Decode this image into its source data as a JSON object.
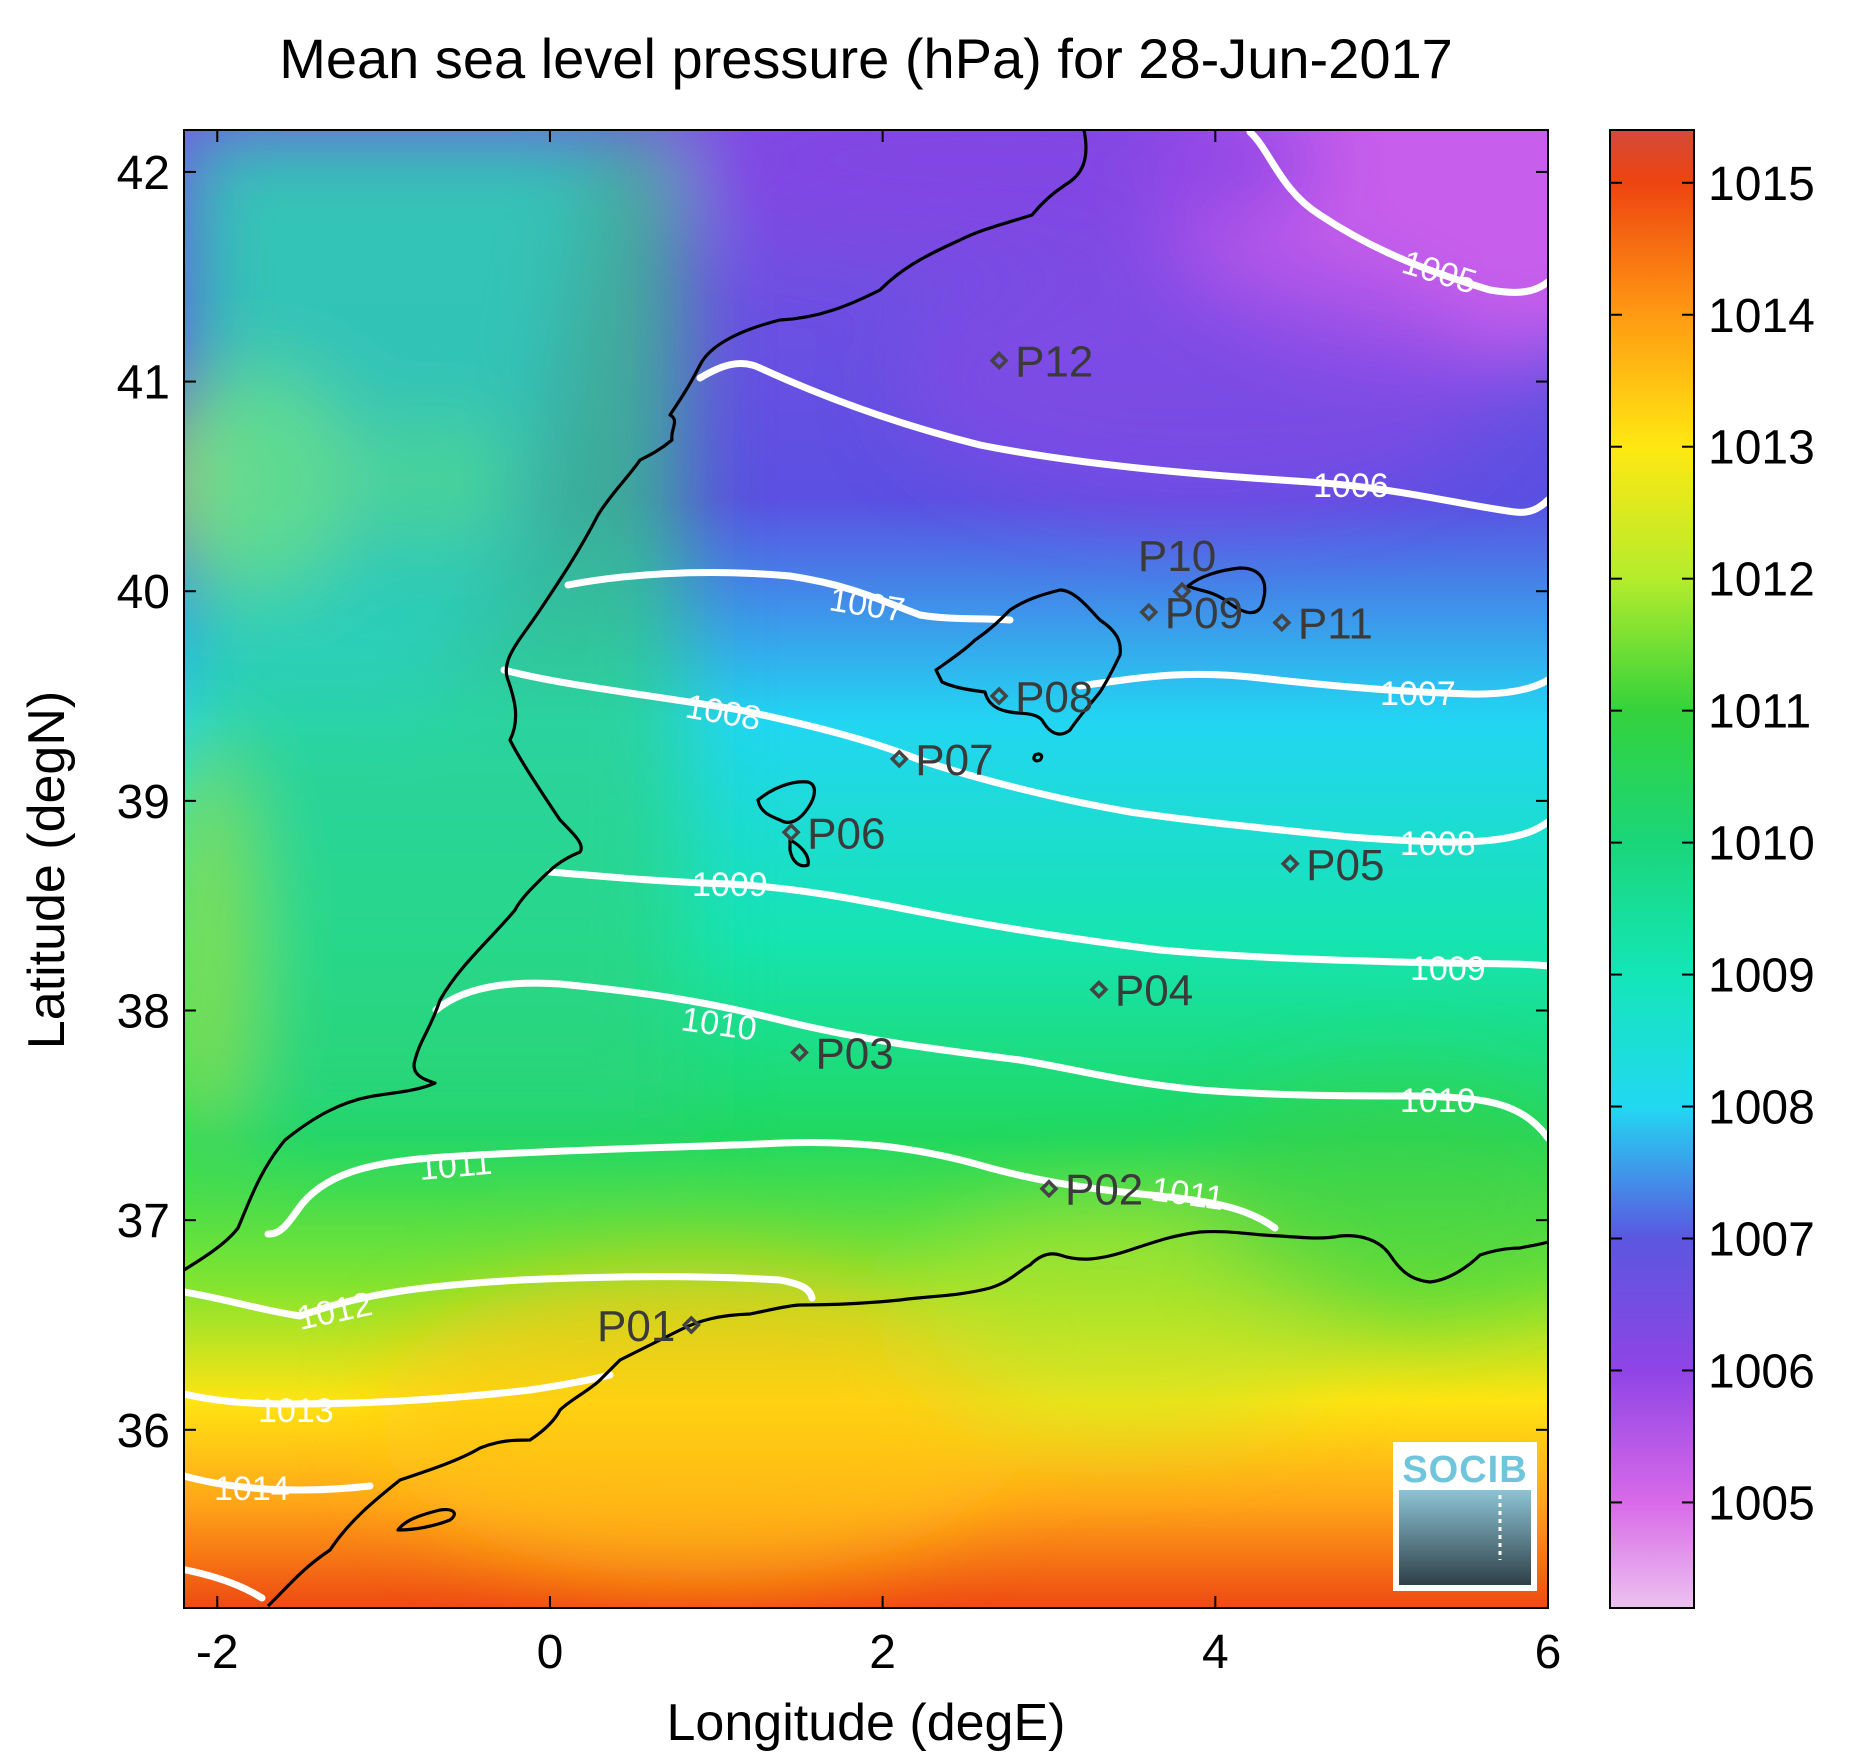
{
  "title": "Mean sea level pressure (hPa) for 28-Jun-2017",
  "xlabel": "Longitude (degE)",
  "ylabel": "Latitude (degN)",
  "x_ticks": [
    "-2",
    "0",
    "2",
    "4",
    "6"
  ],
  "y_ticks": [
    "42",
    "41",
    "40",
    "39",
    "38",
    "37",
    "36"
  ],
  "colorbar_ticks": [
    "1015",
    "1014",
    "1013",
    "1012",
    "1011",
    "1010",
    "1009",
    "1008",
    "1007",
    "1006",
    "1005"
  ],
  "colorbar_stops": [
    {
      "value": 1004.2,
      "color": "#ecc2f0"
    },
    {
      "value": 1005,
      "color": "#d86ae8"
    },
    {
      "value": 1006,
      "color": "#8f44e6"
    },
    {
      "value": 1007,
      "color": "#5b56e0"
    },
    {
      "value": 1008,
      "color": "#22d8f2"
    },
    {
      "value": 1009,
      "color": "#14e6b8"
    },
    {
      "value": 1010,
      "color": "#1ad67a"
    },
    {
      "value": 1011,
      "color": "#34d23c"
    },
    {
      "value": 1012,
      "color": "#b4ec2c"
    },
    {
      "value": 1013,
      "color": "#ffe812"
    },
    {
      "value": 1014,
      "color": "#ff9a12"
    },
    {
      "value": 1015,
      "color": "#ee4410"
    },
    {
      "value": 1015.4,
      "color": "#d44a3a"
    }
  ],
  "contour_labels": [
    "1005",
    "1006",
    "1007",
    "1007",
    "1008",
    "1008",
    "1009",
    "1009",
    "1010",
    "1010",
    "1011",
    "1011",
    "1012",
    "1013",
    "1014"
  ],
  "stations": [
    {
      "name": "P01",
      "lon": 0.85,
      "lat": 36.5
    },
    {
      "name": "P02",
      "lon": 3.0,
      "lat": 37.15
    },
    {
      "name": "P03",
      "lon": 1.5,
      "lat": 37.8
    },
    {
      "name": "P04",
      "lon": 3.3,
      "lat": 38.1
    },
    {
      "name": "P05",
      "lon": 4.45,
      "lat": 38.7
    },
    {
      "name": "P06",
      "lon": 1.45,
      "lat": 38.85
    },
    {
      "name": "P07",
      "lon": 2.1,
      "lat": 39.2
    },
    {
      "name": "P08",
      "lon": 2.7,
      "lat": 39.5
    },
    {
      "name": "P09",
      "lon": 3.6,
      "lat": 39.9
    },
    {
      "name": "P10",
      "lon": 3.8,
      "lat": 40.0
    },
    {
      "name": "P11",
      "lon": 4.4,
      "lat": 39.85
    },
    {
      "name": "P12",
      "lon": 2.7,
      "lat": 41.1
    }
  ],
  "logo_text": "SOCIB",
  "chart_data": {
    "type": "heatmap",
    "title": "Mean sea level pressure (hPa) for 28-Jun-2017",
    "xlabel": "Longitude (degE)",
    "ylabel": "Latitude (degN)",
    "xlim": [
      -2.2,
      6.0
    ],
    "ylim": [
      35.15,
      42.2
    ],
    "colorbar_range": [
      1004.2,
      1015.4
    ],
    "contour_levels": [
      1005,
      1006,
      1007,
      1008,
      1009,
      1010,
      1011,
      1012,
      1013,
      1014
    ]
  }
}
